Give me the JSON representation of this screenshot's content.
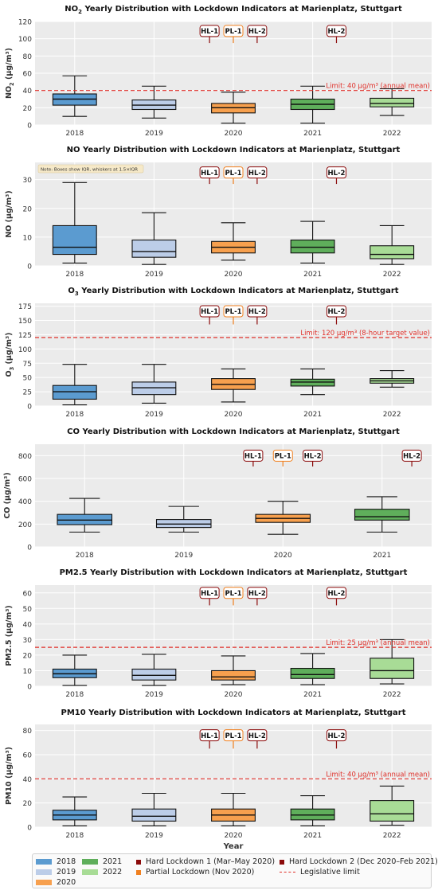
{
  "colors": {
    "2018": "#5b9bd0",
    "2019": "#bccde8",
    "2020": "#f7a04e",
    "2021": "#5fae5b",
    "2022": "#a8dc96",
    "hard_lockdown": "#8b0a0a",
    "partial_lockdown": "#f08020",
    "limit": "#e0302a"
  },
  "chart_data": [
    {
      "type": "box",
      "title_main": "NO",
      "title_sub": "2",
      "title_rest": " Yearly Distribution with Lockdown Indicators at Marienplatz, Stuttgart",
      "ylabel_main": "NO",
      "ylabel_sub": "2",
      "ylabel_rest": " (µg/m³)",
      "ylim": [
        0,
        120
      ],
      "yticks": [
        0,
        20,
        40,
        60,
        80,
        100,
        120
      ],
      "categories": [
        "2018",
        "2019",
        "2020",
        "2021",
        "2022"
      ],
      "boxes": [
        {
          "year": "2018",
          "whisker_low": 10,
          "q1": 23,
          "median": 30,
          "q3": 36,
          "whisker_high": 57
        },
        {
          "year": "2019",
          "whisker_low": 8,
          "q1": 18,
          "median": 23,
          "q3": 29,
          "whisker_high": 45
        },
        {
          "year": "2020",
          "whisker_low": 2,
          "q1": 14,
          "median": 20,
          "q3": 25,
          "whisker_high": 38
        },
        {
          "year": "2021",
          "whisker_low": 2,
          "q1": 18,
          "median": 24,
          "q3": 30,
          "whisker_high": 45
        },
        {
          "year": "2022",
          "whisker_low": 11,
          "q1": 21,
          "median": 25,
          "q3": 31,
          "whisker_high": 42
        }
      ],
      "limit": {
        "value": 40,
        "label": "Limit: 40 µg/m³ (annual mean)"
      },
      "markers": [
        {
          "label": "HL-1",
          "x": 1.7,
          "kind": "hard"
        },
        {
          "label": "PL-1",
          "x": 2.0,
          "kind": "partial"
        },
        {
          "label": "HL-2",
          "x": 2.3,
          "kind": "hard"
        },
        {
          "label": "HL-2",
          "x": 3.3,
          "kind": "hard"
        }
      ],
      "marker_y": 109,
      "marker_stem_bottom": 95
    },
    {
      "type": "box",
      "title_main": "NO Yearly Distribution with Lockdown Indicators at Marienplatz, Stuttgart",
      "title_sub": "",
      "title_rest": "",
      "ylabel_main": "NO (µg/m³)",
      "ylabel_sub": "",
      "ylabel_rest": "",
      "ylim": [
        0,
        36
      ],
      "yticks": [
        0,
        10,
        20,
        30
      ],
      "categories": [
        "2018",
        "2019",
        "2020",
        "2021",
        "2022"
      ],
      "boxes": [
        {
          "year": "2018",
          "whisker_low": 1,
          "q1": 4,
          "median": 6.5,
          "q3": 14,
          "whisker_high": 29
        },
        {
          "year": "2019",
          "whisker_low": 0.5,
          "q1": 3,
          "median": 5,
          "q3": 9,
          "whisker_high": 18.5
        },
        {
          "year": "2020",
          "whisker_low": 2,
          "q1": 4.5,
          "median": 6.5,
          "q3": 8.5,
          "whisker_high": 15
        },
        {
          "year": "2021",
          "whisker_low": 1,
          "q1": 4.5,
          "median": 6.5,
          "q3": 9,
          "whisker_high": 15.5
        },
        {
          "year": "2022",
          "whisker_low": 0.5,
          "q1": 2.5,
          "median": 4,
          "q3": 7,
          "whisker_high": 14
        }
      ],
      "note": "Note: Boxes show IQR, whiskers at 1.5×IQR",
      "markers": [
        {
          "label": "HL-1",
          "x": 1.7,
          "kind": "hard"
        },
        {
          "label": "PL-1",
          "x": 2.0,
          "kind": "partial"
        },
        {
          "label": "HL-2",
          "x": 2.3,
          "kind": "hard"
        },
        {
          "label": "HL-2",
          "x": 3.3,
          "kind": "hard"
        }
      ],
      "marker_y": 32.5,
      "marker_stem_bottom": 28.5
    },
    {
      "type": "box",
      "title_main": "O",
      "title_sub": "3",
      "title_rest": " Yearly Distribution with Lockdown Indicators at Marienplatz, Stuttgart",
      "ylabel_main": "O",
      "ylabel_sub": "3",
      "ylabel_rest": " (µg/m³)",
      "ylim": [
        0,
        180
      ],
      "yticks": [
        0,
        25,
        50,
        75,
        100,
        125,
        150,
        175
      ],
      "categories": [
        "2018",
        "2019",
        "2020",
        "2021",
        "2022"
      ],
      "boxes": [
        {
          "year": "2018",
          "whisker_low": 2,
          "q1": 12,
          "median": 25,
          "q3": 36,
          "whisker_high": 73
        },
        {
          "year": "2019",
          "whisker_low": 5,
          "q1": 20,
          "median": 32,
          "q3": 42,
          "whisker_high": 73
        },
        {
          "year": "2020",
          "whisker_low": 7,
          "q1": 29,
          "median": 38,
          "q3": 48,
          "whisker_high": 65
        },
        {
          "year": "2021",
          "whisker_low": 20,
          "q1": 35,
          "median": 42,
          "q3": 47,
          "whisker_high": 65
        },
        {
          "year": "2022",
          "whisker_low": 33,
          "q1": 40,
          "median": 44,
          "q3": 48,
          "whisker_high": 62
        }
      ],
      "limit": {
        "value": 120,
        "label": "Limit: 120 µg/m³ (8-hour target value)"
      },
      "markers": [
        {
          "label": "HL-1",
          "x": 1.7,
          "kind": "hard"
        },
        {
          "label": "PL-1",
          "x": 2.0,
          "kind": "partial"
        },
        {
          "label": "HL-2",
          "x": 2.3,
          "kind": "hard"
        },
        {
          "label": "HL-2",
          "x": 3.3,
          "kind": "hard"
        }
      ],
      "marker_y": 166,
      "marker_stem_bottom": 143
    },
    {
      "type": "box",
      "title_main": "CO Yearly Distribution with Lockdown Indicators at Marienplatz, Stuttgart",
      "title_sub": "",
      "title_rest": "",
      "ylabel_main": "CO (µg/m³)",
      "ylabel_sub": "",
      "ylabel_rest": "",
      "ylim": [
        0,
        900
      ],
      "yticks": [
        0,
        200,
        400,
        600,
        800
      ],
      "categories": [
        "2018",
        "2019",
        "2020",
        "2021"
      ],
      "boxes": [
        {
          "year": "2018",
          "whisker_low": 130,
          "q1": 195,
          "median": 235,
          "q3": 285,
          "whisker_high": 425
        },
        {
          "year": "2019",
          "whisker_low": 130,
          "q1": 170,
          "median": 200,
          "q3": 240,
          "whisker_high": 355
        },
        {
          "year": "2020",
          "whisker_low": 110,
          "q1": 215,
          "median": 250,
          "q3": 285,
          "whisker_high": 400
        },
        {
          "year": "2021",
          "whisker_low": 130,
          "q1": 235,
          "median": 265,
          "q3": 330,
          "whisker_high": 440
        }
      ],
      "markers": [
        {
          "label": "HL-1",
          "x": 1.7,
          "kind": "hard"
        },
        {
          "label": "PL-1",
          "x": 2.0,
          "kind": "partial"
        },
        {
          "label": "HL-2",
          "x": 2.3,
          "kind": "hard"
        },
        {
          "label": "HL-2",
          "x": 3.3,
          "kind": "hard"
        }
      ],
      "marker_y": 800,
      "marker_stem_bottom": 705
    },
    {
      "type": "box",
      "title_main": "PM2.5 Yearly Distribution with Lockdown Indicators at Marienplatz, Stuttgart",
      "title_sub": "",
      "title_rest": "",
      "ylabel_main": "PM2.5 (µg/m³)",
      "ylabel_sub": "",
      "ylabel_rest": "",
      "ylim": [
        0,
        65
      ],
      "yticks": [
        0,
        10,
        20,
        30,
        40,
        50,
        60
      ],
      "categories": [
        "2018",
        "2019",
        "2020",
        "2021",
        "2022"
      ],
      "boxes": [
        {
          "year": "2018",
          "whisker_low": 0.5,
          "q1": 5.5,
          "median": 8,
          "q3": 11,
          "whisker_high": 20
        },
        {
          "year": "2019",
          "whisker_low": 0.5,
          "q1": 4,
          "median": 7,
          "q3": 11,
          "whisker_high": 20.5
        },
        {
          "year": "2020",
          "whisker_low": 1,
          "q1": 4,
          "median": 6,
          "q3": 10,
          "whisker_high": 19.5
        },
        {
          "year": "2021",
          "whisker_low": 1,
          "q1": 5,
          "median": 7.5,
          "q3": 11.5,
          "whisker_high": 21
        },
        {
          "year": "2022",
          "whisker_low": 1.5,
          "q1": 5,
          "median": 10,
          "q3": 18,
          "whisker_high": 30
        }
      ],
      "limit": {
        "value": 25,
        "label": "Limit: 25 µg/m³ (annual mean)"
      },
      "markers": [
        {
          "label": "HL-1",
          "x": 1.7,
          "kind": "hard"
        },
        {
          "label": "PL-1",
          "x": 2.0,
          "kind": "partial"
        },
        {
          "label": "HL-2",
          "x": 2.3,
          "kind": "hard"
        },
        {
          "label": "HL-2",
          "x": 3.3,
          "kind": "hard"
        }
      ],
      "marker_y": 60,
      "marker_stem_bottom": 52
    },
    {
      "type": "box",
      "title_main": "PM10 Yearly Distribution with Lockdown Indicators at Marienplatz, Stuttgart",
      "title_sub": "",
      "title_rest": "",
      "ylabel_main": "PM10 (µg/m³)",
      "ylabel_sub": "",
      "ylabel_rest": "",
      "ylim": [
        0,
        85
      ],
      "yticks": [
        0,
        20,
        40,
        60,
        80
      ],
      "categories": [
        "2018",
        "2019",
        "2020",
        "2021",
        "2022"
      ],
      "boxes": [
        {
          "year": "2018",
          "whisker_low": 1,
          "q1": 6,
          "median": 10,
          "q3": 14,
          "whisker_high": 25
        },
        {
          "year": "2019",
          "whisker_low": 1,
          "q1": 5,
          "median": 9,
          "q3": 15,
          "whisker_high": 28
        },
        {
          "year": "2020",
          "whisker_low": 1,
          "q1": 5,
          "median": 10,
          "q3": 15,
          "whisker_high": 28
        },
        {
          "year": "2021",
          "whisker_low": 1,
          "q1": 6,
          "median": 10,
          "q3": 15,
          "whisker_high": 26
        },
        {
          "year": "2022",
          "whisker_low": 1.5,
          "q1": 5,
          "median": 11,
          "q3": 22,
          "whisker_high": 34
        }
      ],
      "limit": {
        "value": 40,
        "label": "Limit: 40 µg/m³ (annual mean)"
      },
      "markers": [
        {
          "label": "HL-1",
          "x": 1.7,
          "kind": "hard"
        },
        {
          "label": "PL-1",
          "x": 2.0,
          "kind": "partial"
        },
        {
          "label": "HL-2",
          "x": 2.3,
          "kind": "hard"
        },
        {
          "label": "HL-2",
          "x": 3.3,
          "kind": "hard"
        }
      ],
      "marker_y": 76,
      "marker_stem_bottom": 65,
      "xlabel": "Year"
    }
  ],
  "legend": {
    "years": [
      "2018",
      "2019",
      "2020",
      "2021",
      "2022"
    ],
    "hard1": "Hard Lockdown 1 (Mar–May 2020)",
    "partial": "Partial Lockdown (Nov 2020)",
    "hard2": "Hard Lockdown 2 (Dec 2020–Feb 2021)",
    "limit": "Legislative limit"
  }
}
